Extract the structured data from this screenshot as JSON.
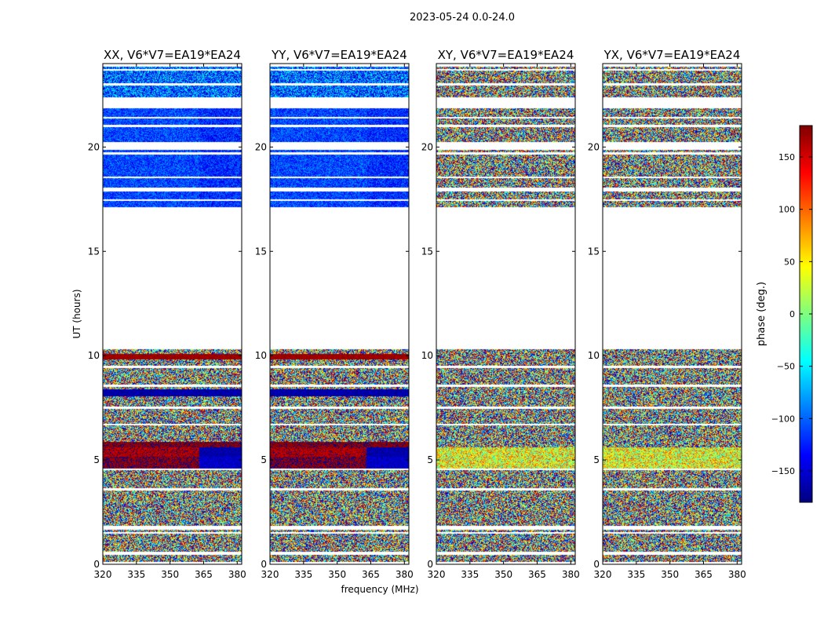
{
  "figure": {
    "suptitle": "2023-05-24 0.0-24.0"
  },
  "chart_data": [
    {
      "type": "heatmap",
      "title": "XX, V6*V7=EA19*EA24",
      "xlabel": "",
      "ylabel": "UT (hours)",
      "xlim": [
        320,
        382
      ],
      "ylim": [
        0,
        24
      ],
      "x_ticks": [
        320,
        335,
        350,
        365,
        380
      ],
      "y_ticks": [
        0,
        5,
        10,
        15,
        20
      ],
      "pattern": "coherent"
    },
    {
      "type": "heatmap",
      "title": "YY, V6*V7=EA19*EA24",
      "xlabel": "frequency (MHz)",
      "ylabel": "",
      "xlim": [
        320,
        382
      ],
      "ylim": [
        0,
        24
      ],
      "x_ticks": [
        320,
        335,
        350,
        365,
        380
      ],
      "y_ticks": [
        0,
        5,
        10,
        15,
        20
      ],
      "pattern": "coherent"
    },
    {
      "type": "heatmap",
      "title": "XY, V6*V7=EA19*EA24",
      "xlabel": "",
      "ylabel": "",
      "xlim": [
        320,
        382
      ],
      "ylim": [
        0,
        24
      ],
      "x_ticks": [
        320,
        335,
        350,
        365,
        380
      ],
      "y_ticks": [
        0,
        5,
        10,
        15,
        20
      ],
      "pattern": "noise"
    },
    {
      "type": "heatmap",
      "title": "YX, V6*V7=EA19*EA24",
      "xlabel": "",
      "ylabel": "",
      "xlim": [
        320,
        382
      ],
      "ylim": [
        0,
        24
      ],
      "x_ticks": [
        320,
        335,
        350,
        365,
        380
      ],
      "y_ticks": [
        0,
        5,
        10,
        15,
        20
      ],
      "pattern": "noise"
    }
  ],
  "colorbar": {
    "label": "phase (deg.)",
    "range": [
      -180,
      180
    ],
    "ticks": [
      -150,
      -100,
      -50,
      0,
      50,
      100,
      150
    ],
    "tick_labels": [
      "−150",
      "−100",
      "−50",
      "0",
      "50",
      "100",
      "150"
    ],
    "colormap": "jet",
    "colors": [
      "#00007f",
      "#0000ff",
      "#007fff",
      "#00ffff",
      "#7fff7f",
      "#ffff00",
      "#ff7f00",
      "#ff0000",
      "#7f0000"
    ]
  },
  "data_gaps_ut_hours": [
    [
      0.0,
      0.1
    ],
    [
      0.45,
      0.6
    ],
    [
      1.45,
      1.55
    ],
    [
      1.65,
      1.85
    ],
    [
      3.55,
      3.65
    ],
    [
      4.5,
      4.6
    ],
    [
      6.65,
      6.75
    ],
    [
      7.45,
      7.55
    ],
    [
      8.5,
      8.6
    ],
    [
      9.4,
      9.5
    ],
    [
      10.3,
      17.1
    ],
    [
      17.4,
      17.5
    ],
    [
      17.85,
      18.05
    ],
    [
      18.5,
      18.6
    ],
    [
      19.65,
      19.75
    ],
    [
      19.85,
      20.25
    ],
    [
      20.95,
      21.05
    ],
    [
      21.35,
      21.45
    ],
    [
      21.85,
      22.4
    ],
    [
      22.95,
      23.05
    ],
    [
      23.65,
      23.75
    ],
    [
      23.85,
      24.0
    ]
  ]
}
